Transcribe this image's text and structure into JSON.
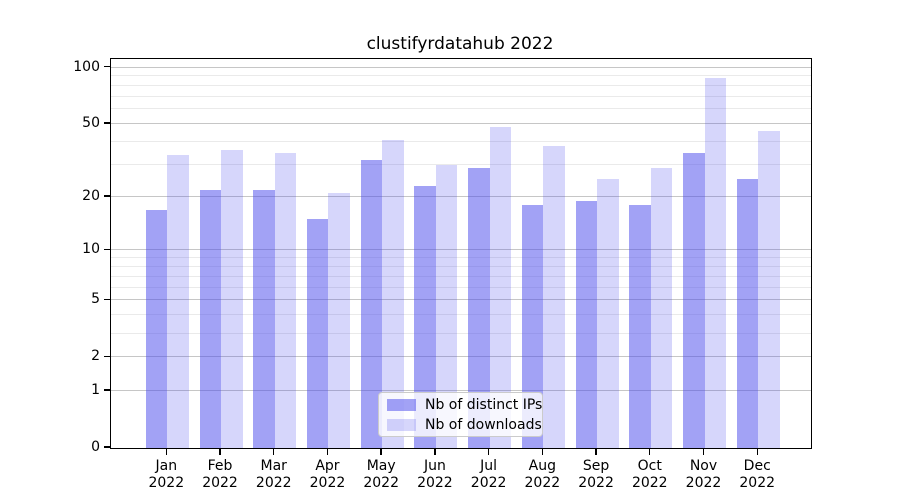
{
  "title": "clustifyrdatahub 2022",
  "chart_data": {
    "type": "bar",
    "title": "clustifyrdatahub 2022",
    "categories": [
      "Jan",
      "Feb",
      "Mar",
      "Apr",
      "May",
      "Jun",
      "Jul",
      "Aug",
      "Sep",
      "Oct",
      "Nov",
      "Dec"
    ],
    "x_sublabel": "2022",
    "series": [
      {
        "name": "Nb of distinct IPs",
        "color": "rgba(70,70,235,0.5)",
        "values": [
          17,
          22,
          22,
          15,
          32,
          23,
          29,
          18,
          19,
          18,
          35,
          25
        ]
      },
      {
        "name": "Nb of downloads",
        "color": "rgba(70,70,235,0.22)",
        "values": [
          34,
          36,
          35,
          21,
          41,
          30,
          48,
          38,
          25,
          29,
          88,
          46
        ]
      }
    ],
    "yscale": "log1p",
    "y_major_ticks": [
      0,
      1,
      2,
      5,
      10,
      20,
      50,
      100
    ],
    "y_minor_ticks": [
      3,
      4,
      6,
      7,
      8,
      9,
      30,
      40,
      60,
      70,
      80,
      90
    ],
    "y_axis_top_value": 111,
    "ylim": [
      0,
      111
    ],
    "grid": true,
    "legend_position": "lower center"
  },
  "colors": {
    "major_grid": "#c6c6c6",
    "minor_grid": "#eaeaea",
    "spine": "#000000",
    "text": "#000000",
    "legend_bg": "rgba(255,255,255,0.8)",
    "legend_border": "#cbcbcb"
  }
}
